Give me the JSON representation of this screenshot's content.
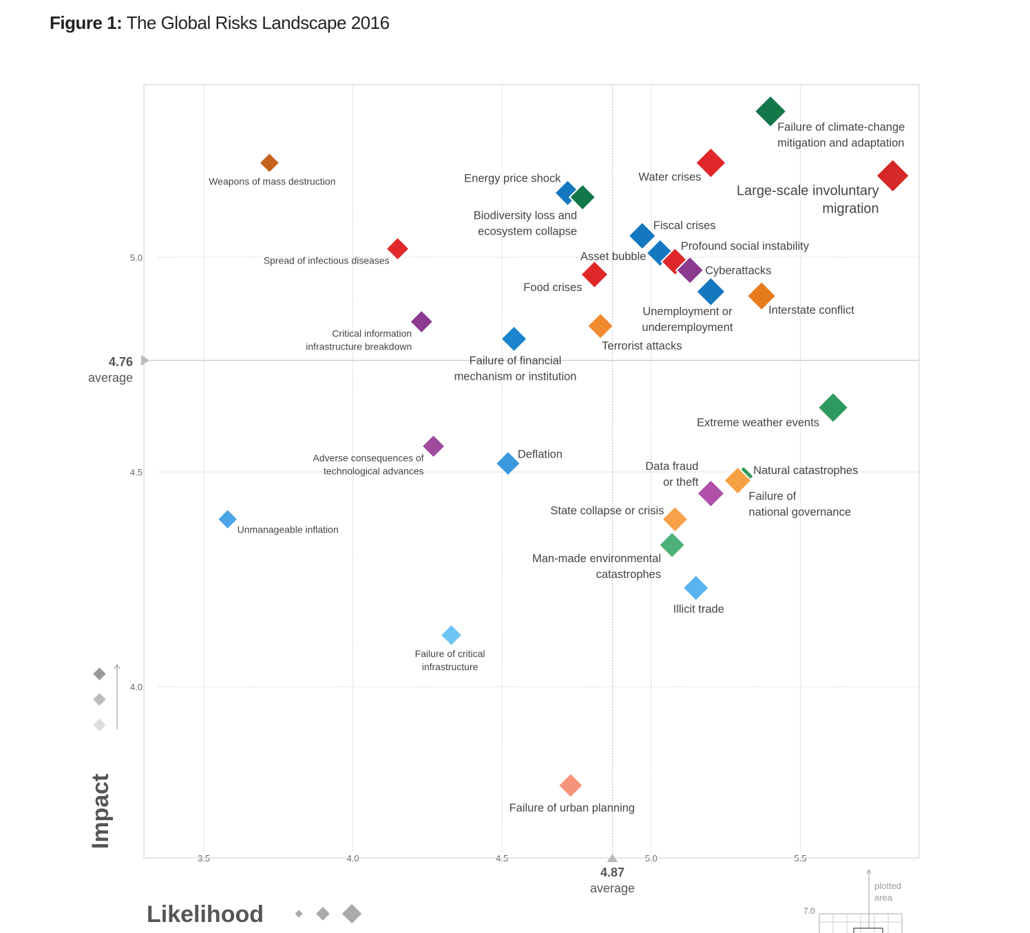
{
  "figure": {
    "title_prefix": "Figure 1:",
    "title_text": "The Global Risks Landscape 2016"
  },
  "colors": {
    "economic": "#1478c0",
    "environmental": "#13774a",
    "geopolitical": "#e87a1e",
    "societal": "#e0282a",
    "technological": "#8b3a8f",
    "grid": "#cccccc",
    "axis": "#bbbbbb"
  },
  "chart_data": {
    "type": "scatter",
    "title": "The Global Risks Landscape 2016",
    "xlabel": "Likelihood",
    "ylabel": "Impact",
    "xlim": [
      3.3,
      5.9
    ],
    "ylim": [
      3.6,
      5.4
    ],
    "x_ticks": [
      "3.5",
      "4.0",
      "4.5",
      "5.0",
      "5.5"
    ],
    "y_ticks": [
      "4.0",
      "4.5",
      "5.0"
    ],
    "x_average": {
      "value": 4.87,
      "value_label": "4.87",
      "text": "average"
    },
    "y_average": {
      "value": 4.76,
      "value_label": "4.76",
      "text": "average"
    },
    "grid": true,
    "points": [
      {
        "label": "Failure of climate-change mitigation and adaptation",
        "lines": [
          "Failure of climate-change",
          "mitigation and adaptation"
        ],
        "x": 5.4,
        "y": 5.34,
        "color": "#13774a",
        "size": 2.2
      },
      {
        "label": "Weapons of mass destruction",
        "lines": [
          "Weapons of mass destruction"
        ],
        "x": 3.72,
        "y": 5.22,
        "color": "#c5621c",
        "size": 1.4,
        "small": true
      },
      {
        "label": "Water crises",
        "lines": [
          "Water crises"
        ],
        "x": 5.2,
        "y": 5.22,
        "color": "#e0282a",
        "size": 2.1
      },
      {
        "label": "Large-scale involuntary migration",
        "lines": [
          "Large-scale involuntary",
          "migration"
        ],
        "x": 5.81,
        "y": 5.19,
        "color": "#d62828",
        "size": 2.3,
        "big": true
      },
      {
        "label": "Energy price shock",
        "lines": [
          "Energy price shock"
        ],
        "x": 4.72,
        "y": 5.15,
        "color": "#1478c0",
        "size": 1.8
      },
      {
        "label": "Biodiversity loss and ecosystem collapse",
        "lines": [
          "Biodiversity loss and",
          "ecosystem collapse"
        ],
        "x": 4.77,
        "y": 5.14,
        "color": "#13774a",
        "size": 1.8
      },
      {
        "label": "Fiscal crises",
        "lines": [
          "Fiscal crises"
        ],
        "x": 4.97,
        "y": 5.05,
        "color": "#1478c0",
        "size": 1.9
      },
      {
        "label": "Spread of infectious diseases",
        "lines": [
          "Spread of infectious diseases"
        ],
        "x": 4.15,
        "y": 5.02,
        "color": "#e0282a",
        "size": 1.6,
        "small": true
      },
      {
        "label": "Profound social instability",
        "lines": [
          "Profound social instability"
        ],
        "x": 5.03,
        "y": 5.01,
        "color": "#1478c0",
        "size": 1.9
      },
      {
        "label": "Asset bubble",
        "lines": [
          "Asset bubble"
        ],
        "x": 5.08,
        "y": 4.99,
        "color": "#e0282a",
        "size": 1.9
      },
      {
        "label": "Cyberattacks",
        "lines": [
          "Cyberattacks"
        ],
        "x": 5.13,
        "y": 4.97,
        "color": "#8b3a8f",
        "size": 1.9
      },
      {
        "label": "Food crises",
        "lines": [
          "Food crises"
        ],
        "x": 4.81,
        "y": 4.96,
        "color": "#e0282a",
        "size": 1.9
      },
      {
        "label": "Unemployment or underemployment",
        "lines": [
          "Unemployment or",
          "underemployment"
        ],
        "x": 5.2,
        "y": 4.92,
        "color": "#1478c0",
        "size": 2.0
      },
      {
        "label": "Interstate conflict",
        "lines": [
          "Interstate conflict"
        ],
        "x": 5.37,
        "y": 4.91,
        "color": "#e87a1e",
        "size": 2.0
      },
      {
        "label": "Critical information infrastructure breakdown",
        "lines": [
          "Critical information",
          "infrastructure breakdown"
        ],
        "x": 4.23,
        "y": 4.85,
        "color": "#8b3a8f",
        "size": 1.6,
        "small": true
      },
      {
        "label": "Terrorist attacks",
        "lines": [
          "Terrorist attacks"
        ],
        "x": 4.83,
        "y": 4.84,
        "color": "#f08a2e",
        "size": 1.8
      },
      {
        "label": "Failure of financial mechanism or institution",
        "lines": [
          "Failure of financial",
          "mechanism or institution"
        ],
        "x": 4.54,
        "y": 4.81,
        "color": "#1a84cc",
        "size": 1.8
      },
      {
        "label": "Extreme weather events",
        "lines": [
          "Extreme weather events"
        ],
        "x": 5.61,
        "y": 4.65,
        "color": "#2e9a60",
        "size": 2.1
      },
      {
        "label": "Adverse consequences of technological advances",
        "lines": [
          "Adverse consequences of",
          "technological advances"
        ],
        "x": 4.27,
        "y": 4.56,
        "color": "#a04a9e",
        "size": 1.6,
        "small": true
      },
      {
        "label": "Deflation",
        "lines": [
          "Deflation"
        ],
        "x": 4.52,
        "y": 4.52,
        "color": "#3a98de",
        "size": 1.7
      },
      {
        "label": "Natural catastrophes",
        "lines": [
          "Natural catastrophes"
        ],
        "x": 5.31,
        "y": 4.49,
        "color": "#2e9a60",
        "size": 1.4
      },
      {
        "label": "Failure of national governance",
        "lines": [
          "Failure of",
          "national governance"
        ],
        "x": 5.29,
        "y": 4.48,
        "color": "#f5a043",
        "size": 1.9
      },
      {
        "label": "Data fraud or theft",
        "lines": [
          "Data fraud",
          "or theft"
        ],
        "x": 5.2,
        "y": 4.45,
        "color": "#b050a8",
        "size": 1.9
      },
      {
        "label": "State collapse or crisis",
        "lines": [
          "State collapse or crisis"
        ],
        "x": 5.08,
        "y": 4.39,
        "color": "#f7a24a",
        "size": 1.8
      },
      {
        "label": "Unmanageable inflation",
        "lines": [
          "Unmanageable inflation"
        ],
        "x": 3.58,
        "y": 4.39,
        "color": "#4aa4e6",
        "size": 1.4,
        "small": true
      },
      {
        "label": "Man-made environmental catastrophes",
        "lines": [
          "Man-made environmental",
          "catastrophes"
        ],
        "x": 5.07,
        "y": 4.33,
        "color": "#4cb07a",
        "size": 1.8
      },
      {
        "label": "Illicit trade",
        "lines": [
          "Illicit trade"
        ],
        "x": 5.15,
        "y": 4.23,
        "color": "#5ab4f0",
        "size": 1.8
      },
      {
        "label": "Failure of critical infrastructure",
        "lines": [
          "Failure of critical",
          "infrastructure"
        ],
        "x": 4.33,
        "y": 4.12,
        "color": "#6ec4f4",
        "size": 1.5,
        "small": true
      },
      {
        "label": "Failure of urban planning",
        "lines": [
          "Failure of urban planning"
        ],
        "x": 4.73,
        "y": 3.77,
        "color": "#f5947a",
        "size": 1.7
      }
    ],
    "inset": {
      "label_top": "plotted",
      "label_bottom": "area",
      "tick": "7.0"
    }
  }
}
